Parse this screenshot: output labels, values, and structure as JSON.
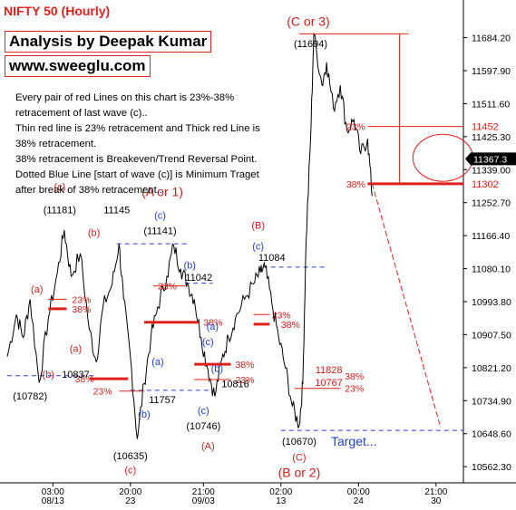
{
  "header": {
    "title": "NIFTY 50 (Hourly)",
    "author": "Analysis by Deepak Kumar",
    "site": "www.sweeglu.com"
  },
  "notes": [
    "Every pair of red Lines on this chart is 23%-38%",
    "retracement of last wave (c)..",
    "Thin red line is 23% retracement and Thick red Line is",
    "38% retracement.",
    "38% retracement is Breakeven/Trend Reversal Point.",
    "Dotted Blue Line [start of wave (c)] is Minimum Traget",
    "after break of 38% retracement.."
  ],
  "colors": {
    "price": "#000000",
    "fib": "#e0201a",
    "wave_blue": "#1f3fd8",
    "dotted_blue": "#2a3fd0",
    "text_red": "#c8221a"
  },
  "chart_data": {
    "type": "line",
    "title": "NIFTY 50 (Hourly)",
    "ylim": [
      10520,
      11740
    ],
    "y_ticks": [
      "11684.20",
      "11597.90",
      "11511.60",
      "11425.30",
      "11339.00",
      "11252.70",
      "11166.40",
      "11080.10",
      "10993.80",
      "10907.50",
      "10821.20",
      "10734.90",
      "10648.60",
      "10562.30"
    ],
    "current_price_label": "11367.3",
    "x_ticks": [
      {
        "t": 0.1,
        "top": "03:00",
        "bottom": "08/13"
      },
      {
        "t": 0.27,
        "top": "20:00",
        "bottom": "23"
      },
      {
        "t": 0.43,
        "top": "21:00",
        "bottom": "09/03"
      },
      {
        "t": 0.6,
        "top": "02:00",
        "bottom": "13"
      },
      {
        "t": 0.77,
        "top": "00:00",
        "bottom": "24"
      },
      {
        "t": 0.94,
        "top": "21:00",
        "bottom": "30"
      }
    ],
    "price_path": [
      {
        "t": 0.0,
        "v": 10850
      },
      {
        "t": 0.02,
        "v": 10960
      },
      {
        "t": 0.035,
        "v": 10900
      },
      {
        "t": 0.05,
        "v": 11000
      },
      {
        "t": 0.07,
        "v": 10782
      },
      {
        "t": 0.09,
        "v": 10950
      },
      {
        "t": 0.11,
        "v": 11070
      },
      {
        "t": 0.125,
        "v": 11181
      },
      {
        "t": 0.14,
        "v": 11060
      },
      {
        "t": 0.16,
        "v": 11120
      },
      {
        "t": 0.18,
        "v": 10920
      },
      {
        "t": 0.195,
        "v": 10837
      },
      {
        "t": 0.21,
        "v": 10980
      },
      {
        "t": 0.23,
        "v": 11040
      },
      {
        "t": 0.245,
        "v": 11145
      },
      {
        "t": 0.255,
        "v": 11000
      },
      {
        "t": 0.27,
        "v": 10850
      },
      {
        "t": 0.285,
        "v": 10635
      },
      {
        "t": 0.3,
        "v": 10780
      },
      {
        "t": 0.315,
        "v": 10900
      },
      {
        "t": 0.33,
        "v": 10980
      },
      {
        "t": 0.35,
        "v": 11060
      },
      {
        "t": 0.365,
        "v": 11141
      },
      {
        "t": 0.38,
        "v": 11080
      },
      {
        "t": 0.395,
        "v": 11042
      },
      {
        "t": 0.41,
        "v": 11000
      },
      {
        "t": 0.425,
        "v": 10900
      },
      {
        "t": 0.44,
        "v": 10816
      },
      {
        "t": 0.455,
        "v": 10746
      },
      {
        "t": 0.47,
        "v": 10840
      },
      {
        "t": 0.485,
        "v": 10900
      },
      {
        "t": 0.5,
        "v": 10950
      },
      {
        "t": 0.52,
        "v": 11000
      },
      {
        "t": 0.54,
        "v": 11040
      },
      {
        "t": 0.555,
        "v": 11070
      },
      {
        "t": 0.565,
        "v": 11084
      },
      {
        "t": 0.58,
        "v": 10990
      },
      {
        "t": 0.595,
        "v": 10900
      },
      {
        "t": 0.61,
        "v": 10820
      },
      {
        "t": 0.625,
        "v": 10720
      },
      {
        "t": 0.64,
        "v": 10670
      },
      {
        "t": 0.648,
        "v": 10780
      },
      {
        "t": 0.655,
        "v": 11150
      },
      {
        "t": 0.665,
        "v": 11420
      },
      {
        "t": 0.672,
        "v": 11694
      },
      {
        "t": 0.69,
        "v": 11560
      },
      {
        "t": 0.7,
        "v": 11620
      },
      {
        "t": 0.715,
        "v": 11500
      },
      {
        "t": 0.73,
        "v": 11560
      },
      {
        "t": 0.745,
        "v": 11440
      },
      {
        "t": 0.76,
        "v": 11470
      },
      {
        "t": 0.775,
        "v": 11380
      },
      {
        "t": 0.79,
        "v": 11420
      },
      {
        "t": 0.8,
        "v": 11270
      }
    ],
    "fib_lines": [
      {
        "from": 0.09,
        "to": 0.13,
        "value": 11000,
        "label": "23%",
        "weight": "thin",
        "label_t": 0.142
      },
      {
        "from": 0.09,
        "to": 0.13,
        "value": 10975,
        "label": "38%",
        "weight": "thick",
        "label_t": 0.142
      },
      {
        "from": 0.18,
        "to": 0.265,
        "value": 10792,
        "label": "38%",
        "weight": "thick",
        "label_t": 0.19,
        "align": "end"
      },
      {
        "from": 0.245,
        "to": 0.3,
        "value": 10760,
        "label": "23%",
        "weight": "thin",
        "label_t": 0.23,
        "align": "end"
      },
      {
        "from": 0.32,
        "to": 0.39,
        "value": 11035,
        "label": "23%",
        "weight": "thin",
        "label_t": 0.33
      },
      {
        "from": 0.3,
        "to": 0.42,
        "value": 10940,
        "label": "38%",
        "weight": "thick",
        "label_t": 0.43
      },
      {
        "from": 0.41,
        "to": 0.49,
        "value": 10830,
        "label": "38%",
        "weight": "thick",
        "label_t": 0.5
      },
      {
        "from": 0.41,
        "to": 0.49,
        "value": 10790,
        "label": "23%",
        "weight": "thin",
        "label_t": 0.5
      },
      {
        "from": 0.54,
        "to": 0.575,
        "value": 10960,
        "label": "23%",
        "weight": "thin",
        "label_t": 0.58
      },
      {
        "from": 0.54,
        "to": 0.575,
        "value": 10935,
        "label": "38%",
        "weight": "thick",
        "label_t": 0.6
      },
      {
        "from": 0.63,
        "to": 0.73,
        "value": 11828,
        "label": "38%",
        "weight": "thick",
        "label_t": 0.74,
        "row": 10800
      },
      {
        "from": 0.63,
        "to": 0.73,
        "value": 10767,
        "label": "23%",
        "weight": "thin",
        "label_t": 0.74
      }
    ],
    "major_levels": [
      {
        "value": 11452,
        "label": "11452",
        "pct": "23%",
        "weight": "thin"
      },
      {
        "value": 11302,
        "label": "11302",
        "pct": "38%",
        "weight": "thick"
      }
    ],
    "dotted_levels": [
      {
        "from": 0.0,
        "to": 0.19,
        "value": 10800
      },
      {
        "from": 0.24,
        "to": 0.4,
        "value": 11145
      },
      {
        "from": 0.39,
        "to": 0.45,
        "value": 11042
      },
      {
        "from": 0.27,
        "to": 0.45,
        "value": 10762
      },
      {
        "from": 0.56,
        "to": 0.7,
        "value": 11084
      },
      {
        "from": 0.6,
        "to": 1.0,
        "value": 10657
      }
    ],
    "wave_labels": [
      {
        "t": 0.115,
        "v": 11285,
        "text": "(c)",
        "color": "red"
      },
      {
        "t": 0.115,
        "v": 11225,
        "text": "(11181)",
        "color": "black"
      },
      {
        "t": 0.19,
        "v": 11165,
        "text": "(b)",
        "color": "red"
      },
      {
        "t": 0.24,
        "v": 11225,
        "text": "11145",
        "color": "black"
      },
      {
        "t": 0.34,
        "v": 11270,
        "text": "(A or 1)",
        "color": "red",
        "size": 14
      },
      {
        "t": 0.335,
        "v": 11210,
        "text": "(c)",
        "color": "blue"
      },
      {
        "t": 0.335,
        "v": 11170,
        "text": "(11141)",
        "color": "black"
      },
      {
        "t": 0.4,
        "v": 11080,
        "text": "(b)",
        "color": "blue"
      },
      {
        "t": 0.42,
        "v": 11048,
        "text": "11042",
        "color": "black"
      },
      {
        "t": 0.55,
        "v": 11185,
        "text": "(B)",
        "color": "red"
      },
      {
        "t": 0.55,
        "v": 11130,
        "text": "(c)",
        "color": "blue"
      },
      {
        "t": 0.58,
        "v": 11100,
        "text": "11084",
        "color": "black"
      },
      {
        "t": 0.66,
        "v": 11715,
        "text": "(C or 3)",
        "color": "red",
        "size": 14
      },
      {
        "t": 0.665,
        "v": 11660,
        "text": "(11694)",
        "color": "black"
      },
      {
        "t": 0.065,
        "v": 11018,
        "text": "(a)",
        "color": "red"
      },
      {
        "t": 0.15,
        "v": 10862,
        "text": "(a)",
        "color": "red"
      },
      {
        "t": 0.09,
        "v": 10795,
        "text": "(b)",
        "color": "red"
      },
      {
        "t": 0.15,
        "v": 10795,
        "text": "10837",
        "color": "black"
      },
      {
        "t": 0.05,
        "v": 10738,
        "text": "(10782)",
        "color": "black"
      },
      {
        "t": 0.33,
        "v": 10828,
        "text": "(a)",
        "color": "blue"
      },
      {
        "t": 0.45,
        "v": 10920,
        "text": "(a)",
        "color": "blue"
      },
      {
        "t": 0.44,
        "v": 10880,
        "text": "(c)",
        "color": "blue"
      },
      {
        "t": 0.46,
        "v": 10810,
        "text": "(b)",
        "color": "blue"
      },
      {
        "t": 0.5,
        "v": 10770,
        "text": "10816",
        "color": "black"
      },
      {
        "t": 0.34,
        "v": 10728,
        "text": "11757",
        "color": "black"
      },
      {
        "t": 0.3,
        "v": 10690,
        "text": "(b)",
        "color": "blue"
      },
      {
        "t": 0.43,
        "v": 10700,
        "text": "(c)",
        "color": "blue"
      },
      {
        "t": 0.43,
        "v": 10660,
        "text": "(10746)",
        "color": "black"
      },
      {
        "t": 0.44,
        "v": 10608,
        "text": "(A)",
        "color": "red"
      },
      {
        "t": 0.27,
        "v": 10582,
        "text": "(10635)",
        "color": "black"
      },
      {
        "t": 0.27,
        "v": 10545,
        "text": "(c)",
        "color": "red"
      },
      {
        "t": 0.64,
        "v": 10620,
        "text": "(10670)",
        "color": "black"
      },
      {
        "t": 0.64,
        "v": 10578,
        "text": "(C)",
        "color": "red"
      },
      {
        "t": 0.64,
        "v": 10535,
        "text": "(B or 2)",
        "color": "red",
        "size": 14
      },
      {
        "t": 0.76,
        "v": 10617,
        "text": "Target...",
        "color": "blue",
        "size": 14
      },
      {
        "t": 0.705,
        "v": 10807,
        "text": "11828",
        "color": "red"
      },
      {
        "t": 0.705,
        "v": 10774,
        "text": "10767",
        "color": "red"
      }
    ]
  }
}
